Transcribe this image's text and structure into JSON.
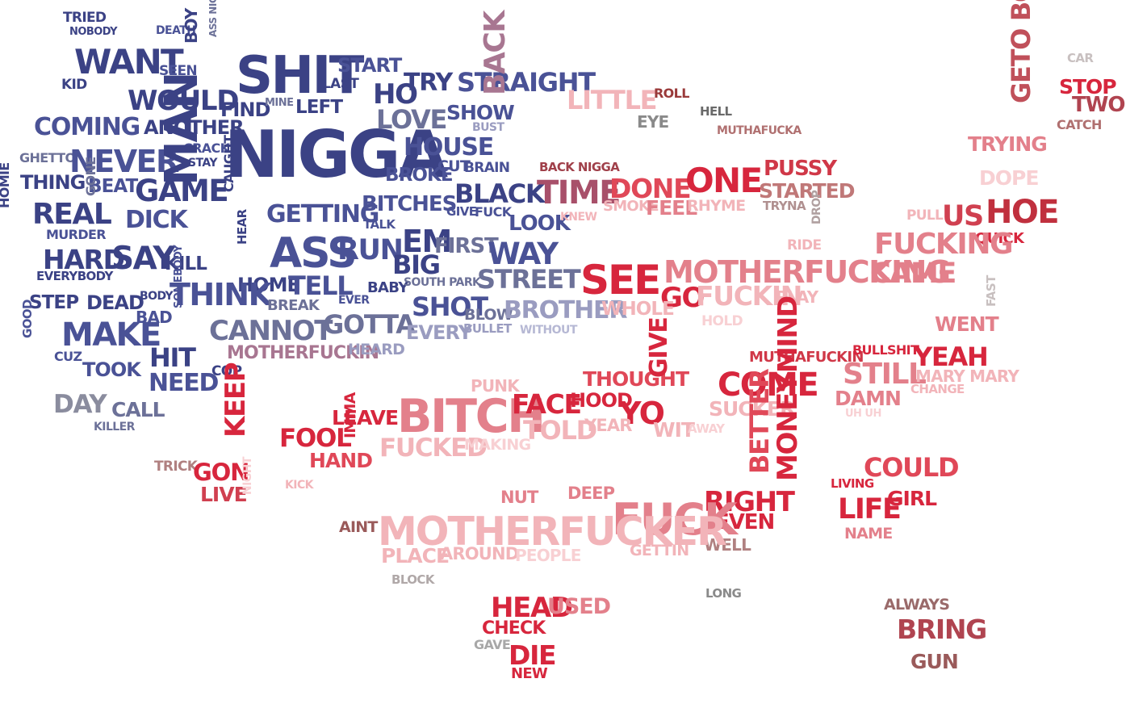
{
  "palette": {
    "navy": "#3b4285",
    "blue": "#4a5296",
    "slate": "#6c7198",
    "lavender": "#9a9cc0",
    "mauve": "#a87691",
    "red": "#d7263d",
    "rose": "#e3808b",
    "pink": "#f2b4b9",
    "gray": "#8a8a8a",
    "brown": "#9a5a5a"
  },
  "words": [
    {
      "id": "tried",
      "text": "TRIED",
      "color": "#3b4285"
    },
    {
      "id": "nobody",
      "text": "NOBODY",
      "color": "#3b4285"
    },
    {
      "id": "death",
      "text": "DEATH",
      "color": "#4a5296"
    },
    {
      "id": "want",
      "text": "WANT",
      "color": "#3b4285"
    },
    {
      "id": "seen",
      "text": "SEEN",
      "color": "#4a5296"
    },
    {
      "id": "boy-left",
      "text": "BOY",
      "color": "#3b4285"
    },
    {
      "id": "ass-nigga",
      "text": "ASS NIGGA",
      "color": "#6c7198"
    },
    {
      "id": "shit",
      "text": "SHIT",
      "color": "#3b4285"
    },
    {
      "id": "start",
      "text": "START",
      "color": "#4a5296"
    },
    {
      "id": "last",
      "text": "LAST",
      "color": "#3b4285"
    },
    {
      "id": "kid",
      "text": "KID",
      "color": "#3b4285"
    },
    {
      "id": "would",
      "text": "WOULD",
      "color": "#3b4285"
    },
    {
      "id": "find",
      "text": "FIND",
      "color": "#3b4285"
    },
    {
      "id": "mine",
      "text": "MINE",
      "color": "#6c7198"
    },
    {
      "id": "left",
      "text": "LEFT",
      "color": "#3b4285"
    },
    {
      "id": "ho",
      "text": "HO",
      "color": "#3b4285"
    },
    {
      "id": "try",
      "text": "TRY",
      "color": "#3b4285"
    },
    {
      "id": "straight",
      "text": "STRAIGHT",
      "color": "#4a5296"
    },
    {
      "id": "love",
      "text": "LOVE",
      "color": "#6c7198"
    },
    {
      "id": "show",
      "text": "SHOW",
      "color": "#4a5296"
    },
    {
      "id": "bust",
      "text": "BUST",
      "color": "#9a9cc0"
    },
    {
      "id": "coming",
      "text": "COMING",
      "color": "#4a5296"
    },
    {
      "id": "another",
      "text": "ANOTHER",
      "color": "#3b4285"
    },
    {
      "id": "crack",
      "text": "CRACK",
      "color": "#4a5296"
    },
    {
      "id": "stay",
      "text": "STAY",
      "color": "#3b4285"
    },
    {
      "id": "nigga",
      "text": "NIGGA",
      "color": "#3b4285"
    },
    {
      "id": "house",
      "text": "HOUSE",
      "color": "#4a5296"
    },
    {
      "id": "broke",
      "text": "BROKE",
      "color": "#4a5296"
    },
    {
      "id": "cut",
      "text": "CUT",
      "color": "#4a5296"
    },
    {
      "id": "brain",
      "text": "BRAIN",
      "color": "#4a5296"
    },
    {
      "id": "back",
      "text": "BACK",
      "color": "#a87691"
    },
    {
      "id": "ghetto",
      "text": "GHETTO",
      "color": "#6c7198"
    },
    {
      "id": "never",
      "text": "NEVER",
      "color": "#4a5296"
    },
    {
      "id": "thing",
      "text": "THING",
      "color": "#3b4285"
    },
    {
      "id": "beat",
      "text": "BEAT",
      "color": "#4a5296"
    },
    {
      "id": "game",
      "text": "GAME",
      "color": "#3b4285"
    },
    {
      "id": "homie",
      "text": "HOMIE",
      "color": "#3b4285"
    },
    {
      "id": "real",
      "text": "REAL",
      "color": "#3b4285"
    },
    {
      "id": "gone",
      "text": "GONE",
      "color": "#6c7198"
    },
    {
      "id": "dick",
      "text": "DICK",
      "color": "#4a5296"
    },
    {
      "id": "man",
      "text": "MAN",
      "color": "#3b4285"
    },
    {
      "id": "caught",
      "text": "CAUGHT",
      "color": "#3b4285"
    },
    {
      "id": "getting",
      "text": "GETTING",
      "color": "#4a5296"
    },
    {
      "id": "bitches",
      "text": "BITCHES",
      "color": "#4a5296"
    },
    {
      "id": "talk",
      "text": "TALK",
      "color": "#4a5296"
    },
    {
      "id": "black",
      "text": "BLACK",
      "color": "#3b4285"
    },
    {
      "id": "give",
      "text": "GIVE",
      "color": "#4a5296"
    },
    {
      "id": "fuck-small",
      "text": "FUCK",
      "color": "#4a5296"
    },
    {
      "id": "look",
      "text": "LOOK",
      "color": "#4a5296"
    },
    {
      "id": "murder",
      "text": "MURDER",
      "color": "#4a5296"
    },
    {
      "id": "hard",
      "text": "HARD",
      "color": "#3b4285"
    },
    {
      "id": "say",
      "text": "SAY",
      "color": "#3b4285"
    },
    {
      "id": "kill",
      "text": "KILL",
      "color": "#3b4285"
    },
    {
      "id": "hear",
      "text": "HEAR",
      "color": "#3b4285"
    },
    {
      "id": "ass",
      "text": "ASS",
      "color": "#4a5296"
    },
    {
      "id": "run",
      "text": "RUN",
      "color": "#4a5296"
    },
    {
      "id": "em",
      "text": "EM",
      "color": "#3b4285"
    },
    {
      "id": "first",
      "text": "FIRST",
      "color": "#6c7198"
    },
    {
      "id": "big",
      "text": "BIG",
      "color": "#3b4285"
    },
    {
      "id": "way",
      "text": "WAY",
      "color": "#4a5296"
    },
    {
      "id": "everybody",
      "text": "EVERYBODY",
      "color": "#3b4285"
    },
    {
      "id": "home",
      "text": "HOME",
      "color": "#3b4285"
    },
    {
      "id": "tell",
      "text": "TELL",
      "color": "#4a5296"
    },
    {
      "id": "baby",
      "text": "BABY",
      "color": "#3b4285"
    },
    {
      "id": "south-park",
      "text": "SOUTH PARK",
      "color": "#6c7198"
    },
    {
      "id": "street",
      "text": "STREET",
      "color": "#6c7198"
    },
    {
      "id": "step",
      "text": "STEP",
      "color": "#3b4285"
    },
    {
      "id": "dead",
      "text": "DEAD",
      "color": "#3b4285"
    },
    {
      "id": "body",
      "text": "BODY",
      "color": "#3b4285"
    },
    {
      "id": "think",
      "text": "THINK",
      "color": "#4a5296"
    },
    {
      "id": "break",
      "text": "BREAK",
      "color": "#6c7198"
    },
    {
      "id": "ever",
      "text": "EVER",
      "color": "#4a5296"
    },
    {
      "id": "shot",
      "text": "SHOT",
      "color": "#4a5296"
    },
    {
      "id": "blow",
      "text": "BLOW",
      "color": "#6c7198"
    },
    {
      "id": "brother",
      "text": "BROTHER",
      "color": "#9a9cc0"
    },
    {
      "id": "bad",
      "text": "BAD",
      "color": "#4a5296"
    },
    {
      "id": "make",
      "text": "MAKE",
      "color": "#4a5296"
    },
    {
      "id": "somebody",
      "text": "SOMEBODY",
      "color": "#4a5296"
    },
    {
      "id": "cannot",
      "text": "CANNOT",
      "color": "#6c7198"
    },
    {
      "id": "gotta",
      "text": "GOTTA",
      "color": "#6c7198"
    },
    {
      "id": "every",
      "text": "EVERY",
      "color": "#9a9cc0"
    },
    {
      "id": "bullet",
      "text": "BULLET",
      "color": "#9a9cc0"
    },
    {
      "id": "without",
      "text": "WITHOUT",
      "color": "#b6b8d4"
    },
    {
      "id": "good",
      "text": "GOOD",
      "color": "#4a5296"
    },
    {
      "id": "cuz",
      "text": "CUZ",
      "color": "#4a5296"
    },
    {
      "id": "hit",
      "text": "HIT",
      "color": "#3b4285"
    },
    {
      "id": "motherfuckin-blue",
      "text": "MOTHERFUCKIN",
      "color": "#a87691"
    },
    {
      "id": "heard",
      "text": "HEARD",
      "color": "#9a9cc0"
    },
    {
      "id": "took",
      "text": "TOOK",
      "color": "#4a5296"
    },
    {
      "id": "need",
      "text": "NEED",
      "color": "#4a5296"
    },
    {
      "id": "cop",
      "text": "COP",
      "color": "#3b4285"
    },
    {
      "id": "day",
      "text": "DAY",
      "color": "#8a8c9e"
    },
    {
      "id": "call",
      "text": "CALL",
      "color": "#6c7198"
    },
    {
      "id": "killer",
      "text": "KILLER",
      "color": "#6c7198"
    },
    {
      "id": "little",
      "text": "LITTLE",
      "color": "#f2b4b9"
    },
    {
      "id": "roll",
      "text": "ROLL",
      "color": "#9a3a3a"
    },
    {
      "id": "eye",
      "text": "EYE",
      "color": "#8a8a8a"
    },
    {
      "id": "hell",
      "text": "HELL",
      "color": "#6a6a6a"
    },
    {
      "id": "muthafucka",
      "text": "MUTHAFUCKA",
      "color": "#b07070"
    },
    {
      "id": "car",
      "text": "CAR",
      "color": "#c8c0c0"
    },
    {
      "id": "stop",
      "text": "STOP",
      "color": "#d7263d"
    },
    {
      "id": "two",
      "text": "TWO",
      "color": "#b04450"
    },
    {
      "id": "geto-boy",
      "text": "GETO BOY",
      "color": "#c0505a"
    },
    {
      "id": "catch",
      "text": "CATCH",
      "color": "#b07070"
    },
    {
      "id": "trying",
      "text": "TRYING",
      "color": "#e3808b"
    },
    {
      "id": "dope",
      "text": "DOPE",
      "color": "#f8d0d3"
    },
    {
      "id": "back-nigga",
      "text": "BACK NIGGA",
      "color": "#a0404a"
    },
    {
      "id": "time",
      "text": "TIME",
      "color": "#a8506a"
    },
    {
      "id": "done",
      "text": "DONE",
      "color": "#e04858"
    },
    {
      "id": "one",
      "text": "ONE",
      "color": "#d7263d"
    },
    {
      "id": "pussy",
      "text": "PUSSY",
      "color": "#d03848"
    },
    {
      "id": "started",
      "text": "STARTED",
      "color": "#c07878"
    },
    {
      "id": "knew",
      "text": "KNEW",
      "color": "#f2b4b9"
    },
    {
      "id": "smoke",
      "text": "SMOKE",
      "color": "#f2b4b9"
    },
    {
      "id": "feel",
      "text": "FEEL",
      "color": "#e3808b"
    },
    {
      "id": "rhyme",
      "text": "RHYME",
      "color": "#f2b4b9"
    },
    {
      "id": "tryna",
      "text": "TRYNA",
      "color": "#b09090"
    },
    {
      "id": "ride",
      "text": "RIDE",
      "color": "#f2b4b9"
    },
    {
      "id": "drop",
      "text": "DROP",
      "color": "#b0a0a0"
    },
    {
      "id": "pull",
      "text": "PULL",
      "color": "#f2b4b9"
    },
    {
      "id": "us",
      "text": "US",
      "color": "#d04050"
    },
    {
      "id": "hoe",
      "text": "HOE",
      "color": "#c0303e"
    },
    {
      "id": "quick",
      "text": "QUICK",
      "color": "#d7263d"
    },
    {
      "id": "fucking",
      "text": "FUCKING",
      "color": "#e3808b"
    },
    {
      "id": "came",
      "text": "CAME",
      "color": "#e3808b"
    },
    {
      "id": "see",
      "text": "SEE",
      "color": "#d7263d"
    },
    {
      "id": "motherfucking",
      "text": "MOTHERFUCKING",
      "color": "#e3808b"
    },
    {
      "id": "go",
      "text": "GO",
      "color": "#d7263d"
    },
    {
      "id": "fuckin",
      "text": "FUCKIN",
      "color": "#f2b4b9"
    },
    {
      "id": "play",
      "text": "PLAY",
      "color": "#f2b4b9"
    },
    {
      "id": "whole",
      "text": "WHOLE",
      "color": "#f2b4b9"
    },
    {
      "id": "hold",
      "text": "HOLD",
      "color": "#f8d0d3"
    },
    {
      "id": "went",
      "text": "WENT",
      "color": "#e3808b"
    },
    {
      "id": "fast",
      "text": "FAST",
      "color": "#c8c0c0"
    },
    {
      "id": "muthafuckin",
      "text": "MUTHAFUCKIN",
      "color": "#d03848"
    },
    {
      "id": "bullshit",
      "text": "BULLSHIT",
      "color": "#d7263d"
    },
    {
      "id": "yeah",
      "text": "YEAH",
      "color": "#d7263d"
    },
    {
      "id": "still",
      "text": "STILL",
      "color": "#e3808b"
    },
    {
      "id": "mary-mary",
      "text": "MARY MARY",
      "color": "#f2b4b9"
    },
    {
      "id": "change",
      "text": "CHANGE",
      "color": "#f2b4b9"
    },
    {
      "id": "damn",
      "text": "DAMN",
      "color": "#e3808b"
    },
    {
      "id": "uh-uh",
      "text": "UH UH",
      "color": "#f8d0d3"
    },
    {
      "id": "punk",
      "text": "PUNK",
      "color": "#f2b4b9"
    },
    {
      "id": "thought",
      "text": "THOUGHT",
      "color": "#e04858"
    },
    {
      "id": "come",
      "text": "COME",
      "color": "#d7263d"
    },
    {
      "id": "bitch",
      "text": "BITCH",
      "color": "#e3808b"
    },
    {
      "id": "face",
      "text": "FACE",
      "color": "#d7263d"
    },
    {
      "id": "hood",
      "text": "HOOD",
      "color": "#d7263d"
    },
    {
      "id": "yo",
      "text": "YO",
      "color": "#d7263d"
    },
    {
      "id": "give-red",
      "text": "GIVE",
      "color": "#d7263d"
    },
    {
      "id": "sucker",
      "text": "SUCKER",
      "color": "#f2b4b9"
    },
    {
      "id": "mind",
      "text": "MIND",
      "color": "#d7263d"
    },
    {
      "id": "leave",
      "text": "LEAVE",
      "color": "#d7263d"
    },
    {
      "id": "told",
      "text": "TOLD",
      "color": "#f2b4b9"
    },
    {
      "id": "year",
      "text": "YEAR",
      "color": "#f2b4b9"
    },
    {
      "id": "wit",
      "text": "WIT",
      "color": "#f2b4b9"
    },
    {
      "id": "away",
      "text": "AWAY",
      "color": "#f8d0d3"
    },
    {
      "id": "fool",
      "text": "FOOL",
      "color": "#d7263d"
    },
    {
      "id": "keep",
      "text": "KEEP",
      "color": "#d7263d"
    },
    {
      "id": "hand",
      "text": "HAND",
      "color": "#e04858"
    },
    {
      "id": "imma",
      "text": "IMMA",
      "color": "#d7263d"
    },
    {
      "id": "fucked",
      "text": "FUCKED",
      "color": "#f2b4b9"
    },
    {
      "id": "making",
      "text": "MAKING",
      "color": "#f8d0d3"
    },
    {
      "id": "trick",
      "text": "TRICK",
      "color": "#b08080"
    },
    {
      "id": "gon",
      "text": "GON",
      "color": "#d7263d"
    },
    {
      "id": "live",
      "text": "LIVE",
      "color": "#d04050"
    },
    {
      "id": "kick",
      "text": "KICK",
      "color": "#f2b4b9"
    },
    {
      "id": "night",
      "text": "NIGHT",
      "color": "#f8d0d3"
    },
    {
      "id": "could",
      "text": "COULD",
      "color": "#e04858"
    },
    {
      "id": "living",
      "text": "LIVING",
      "color": "#d7263d"
    },
    {
      "id": "girl",
      "text": "GIRL",
      "color": "#d7263d"
    },
    {
      "id": "life",
      "text": "LIFE",
      "color": "#d7263d"
    },
    {
      "id": "name",
      "text": "NAME",
      "color": "#e3808b"
    },
    {
      "id": "better",
      "text": "BETTER",
      "color": "#e04858"
    },
    {
      "id": "money",
      "text": "MONEY",
      "color": "#d7263d"
    },
    {
      "id": "right",
      "text": "RIGHT",
      "color": "#d7263d"
    },
    {
      "id": "even",
      "text": "EVEN",
      "color": "#d7263d"
    },
    {
      "id": "well",
      "text": "WELL",
      "color": "#b08080"
    },
    {
      "id": "nut",
      "text": "NUT",
      "color": "#e3808b"
    },
    {
      "id": "deep",
      "text": "DEEP",
      "color": "#e3808b"
    },
    {
      "id": "fuck",
      "text": "FUCK",
      "color": "#e3808b"
    },
    {
      "id": "gettin",
      "text": "GETTIN",
      "color": "#f2b4b9"
    },
    {
      "id": "aint",
      "text": "AINT",
      "color": "#9a5a5a"
    },
    {
      "id": "motherfucker",
      "text": "MOTHERFUCKER",
      "color": "#f2b4b9"
    },
    {
      "id": "place",
      "text": "PLACE",
      "color": "#f2b4b9"
    },
    {
      "id": "around",
      "text": "AROUND",
      "color": "#f2b4b9"
    },
    {
      "id": "people",
      "text": "PEOPLE",
      "color": "#f8d0d3"
    },
    {
      "id": "block",
      "text": "BLOCK",
      "color": "#b0a8a8"
    },
    {
      "id": "long",
      "text": "LONG",
      "color": "#8a8a8a"
    },
    {
      "id": "head",
      "text": "HEAD",
      "color": "#d7263d"
    },
    {
      "id": "used",
      "text": "USED",
      "color": "#e3808b"
    },
    {
      "id": "check",
      "text": "CHECK",
      "color": "#d7263d"
    },
    {
      "id": "gave",
      "text": "GAVE",
      "color": "#a8a8a8"
    },
    {
      "id": "die",
      "text": "DIE",
      "color": "#d7263d"
    },
    {
      "id": "new",
      "text": "NEW",
      "color": "#d7263d"
    },
    {
      "id": "always",
      "text": "ALWAYS",
      "color": "#9a6a6a"
    },
    {
      "id": "bring",
      "text": "BRING",
      "color": "#b04450"
    },
    {
      "id": "gun",
      "text": "GUN",
      "color": "#9a5a5a"
    }
  ]
}
